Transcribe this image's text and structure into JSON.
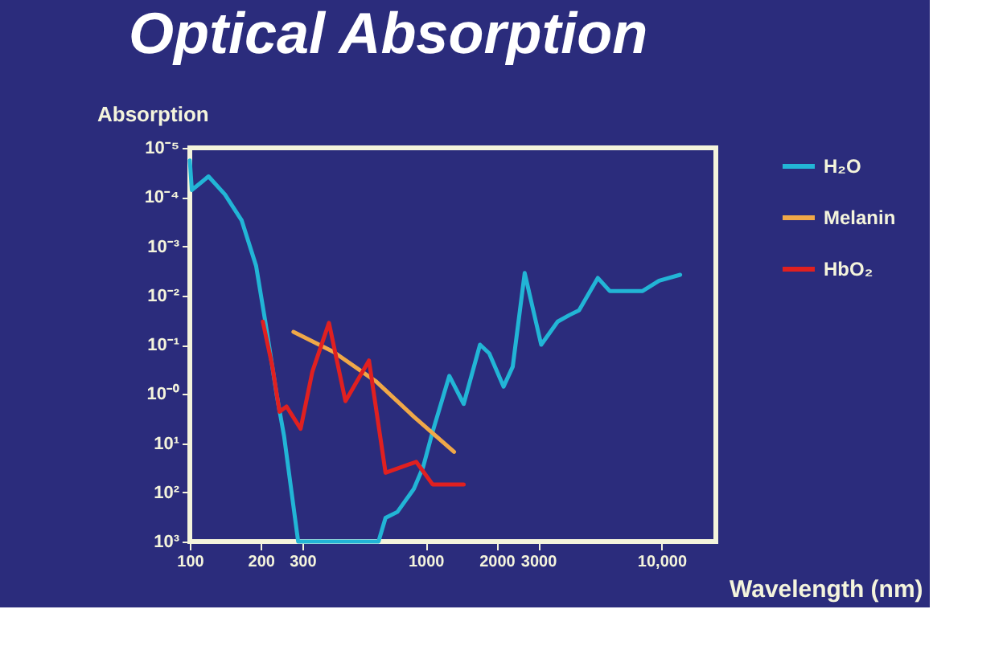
{
  "chart_data": {
    "type": "line",
    "title": "Optical Absorption",
    "ylabel": "Absorption",
    "xlabel": "Wavelength (nm)",
    "log": "xy",
    "xlim": [
      100,
      17000
    ],
    "ylim": [
      1000,
      1e-05
    ],
    "xticks": [
      100,
      200,
      300,
      1000,
      2000,
      3000,
      {
        "value": 10000,
        "label": "10,000"
      }
    ],
    "yticks": [
      {
        "value": 1e-05,
        "label": "10⁻⁵"
      },
      {
        "value": 0.0001,
        "label": "10⁻⁴"
      },
      {
        "value": 0.001,
        "label": "10⁻³"
      },
      {
        "value": 0.01,
        "label": "10⁻²"
      },
      {
        "value": 0.1,
        "label": "10⁻¹"
      },
      {
        "value": 1,
        "label": "10⁻⁰"
      },
      {
        "value": 10,
        "label": "10¹"
      },
      {
        "value": 100,
        "label": "10²"
      },
      {
        "value": 1000,
        "label": "10³"
      }
    ],
    "grid": false,
    "legend": "right",
    "marker": "none",
    "line_style": "solid",
    "series": [
      {
        "name": "H₂O",
        "color": "#22b5d6",
        "x": [
          100,
          102,
          120,
          141,
          166,
          191,
          209,
          234,
          251,
          288,
          631,
          676,
          759,
          891,
          977,
          1070,
          1260,
          1450,
          1700,
          1860,
          2140,
          2340,
          2630,
          3090,
          3630,
          4070,
          4470,
          5370,
          6030,
          8320,
          9770,
          12000
        ],
        "values": [
          1.8e-05,
          7.2e-05,
          3.8e-05,
          8.9e-05,
          0.0003,
          0.0025,
          0.034,
          1.1,
          7.2,
          1000,
          1000,
          330,
          250,
          85,
          30,
          5.9,
          0.43,
          1.6,
          0.1,
          0.15,
          0.71,
          0.28,
          0.0035,
          0.1,
          0.034,
          0.025,
          0.02,
          0.0044,
          0.0081,
          0.0081,
          0.005,
          0.0038
        ]
      },
      {
        "name": "Melanin",
        "color": "#f0a848",
        "x": [
          275,
          407,
          617,
          891,
          1320
        ],
        "values": [
          0.055,
          0.14,
          0.56,
          2.9,
          15
        ]
      },
      {
        "name": "HbO₂",
        "color": "#e02020",
        "x": [
          204,
          224,
          240,
          257,
          295,
          331,
          389,
          457,
          575,
          676,
          912,
          1070,
          1450
        ],
        "values": [
          0.034,
          0.28,
          2.3,
          1.8,
          5.1,
          0.35,
          0.036,
          1.4,
          0.21,
          40,
          24,
          69,
          69
        ]
      }
    ]
  }
}
